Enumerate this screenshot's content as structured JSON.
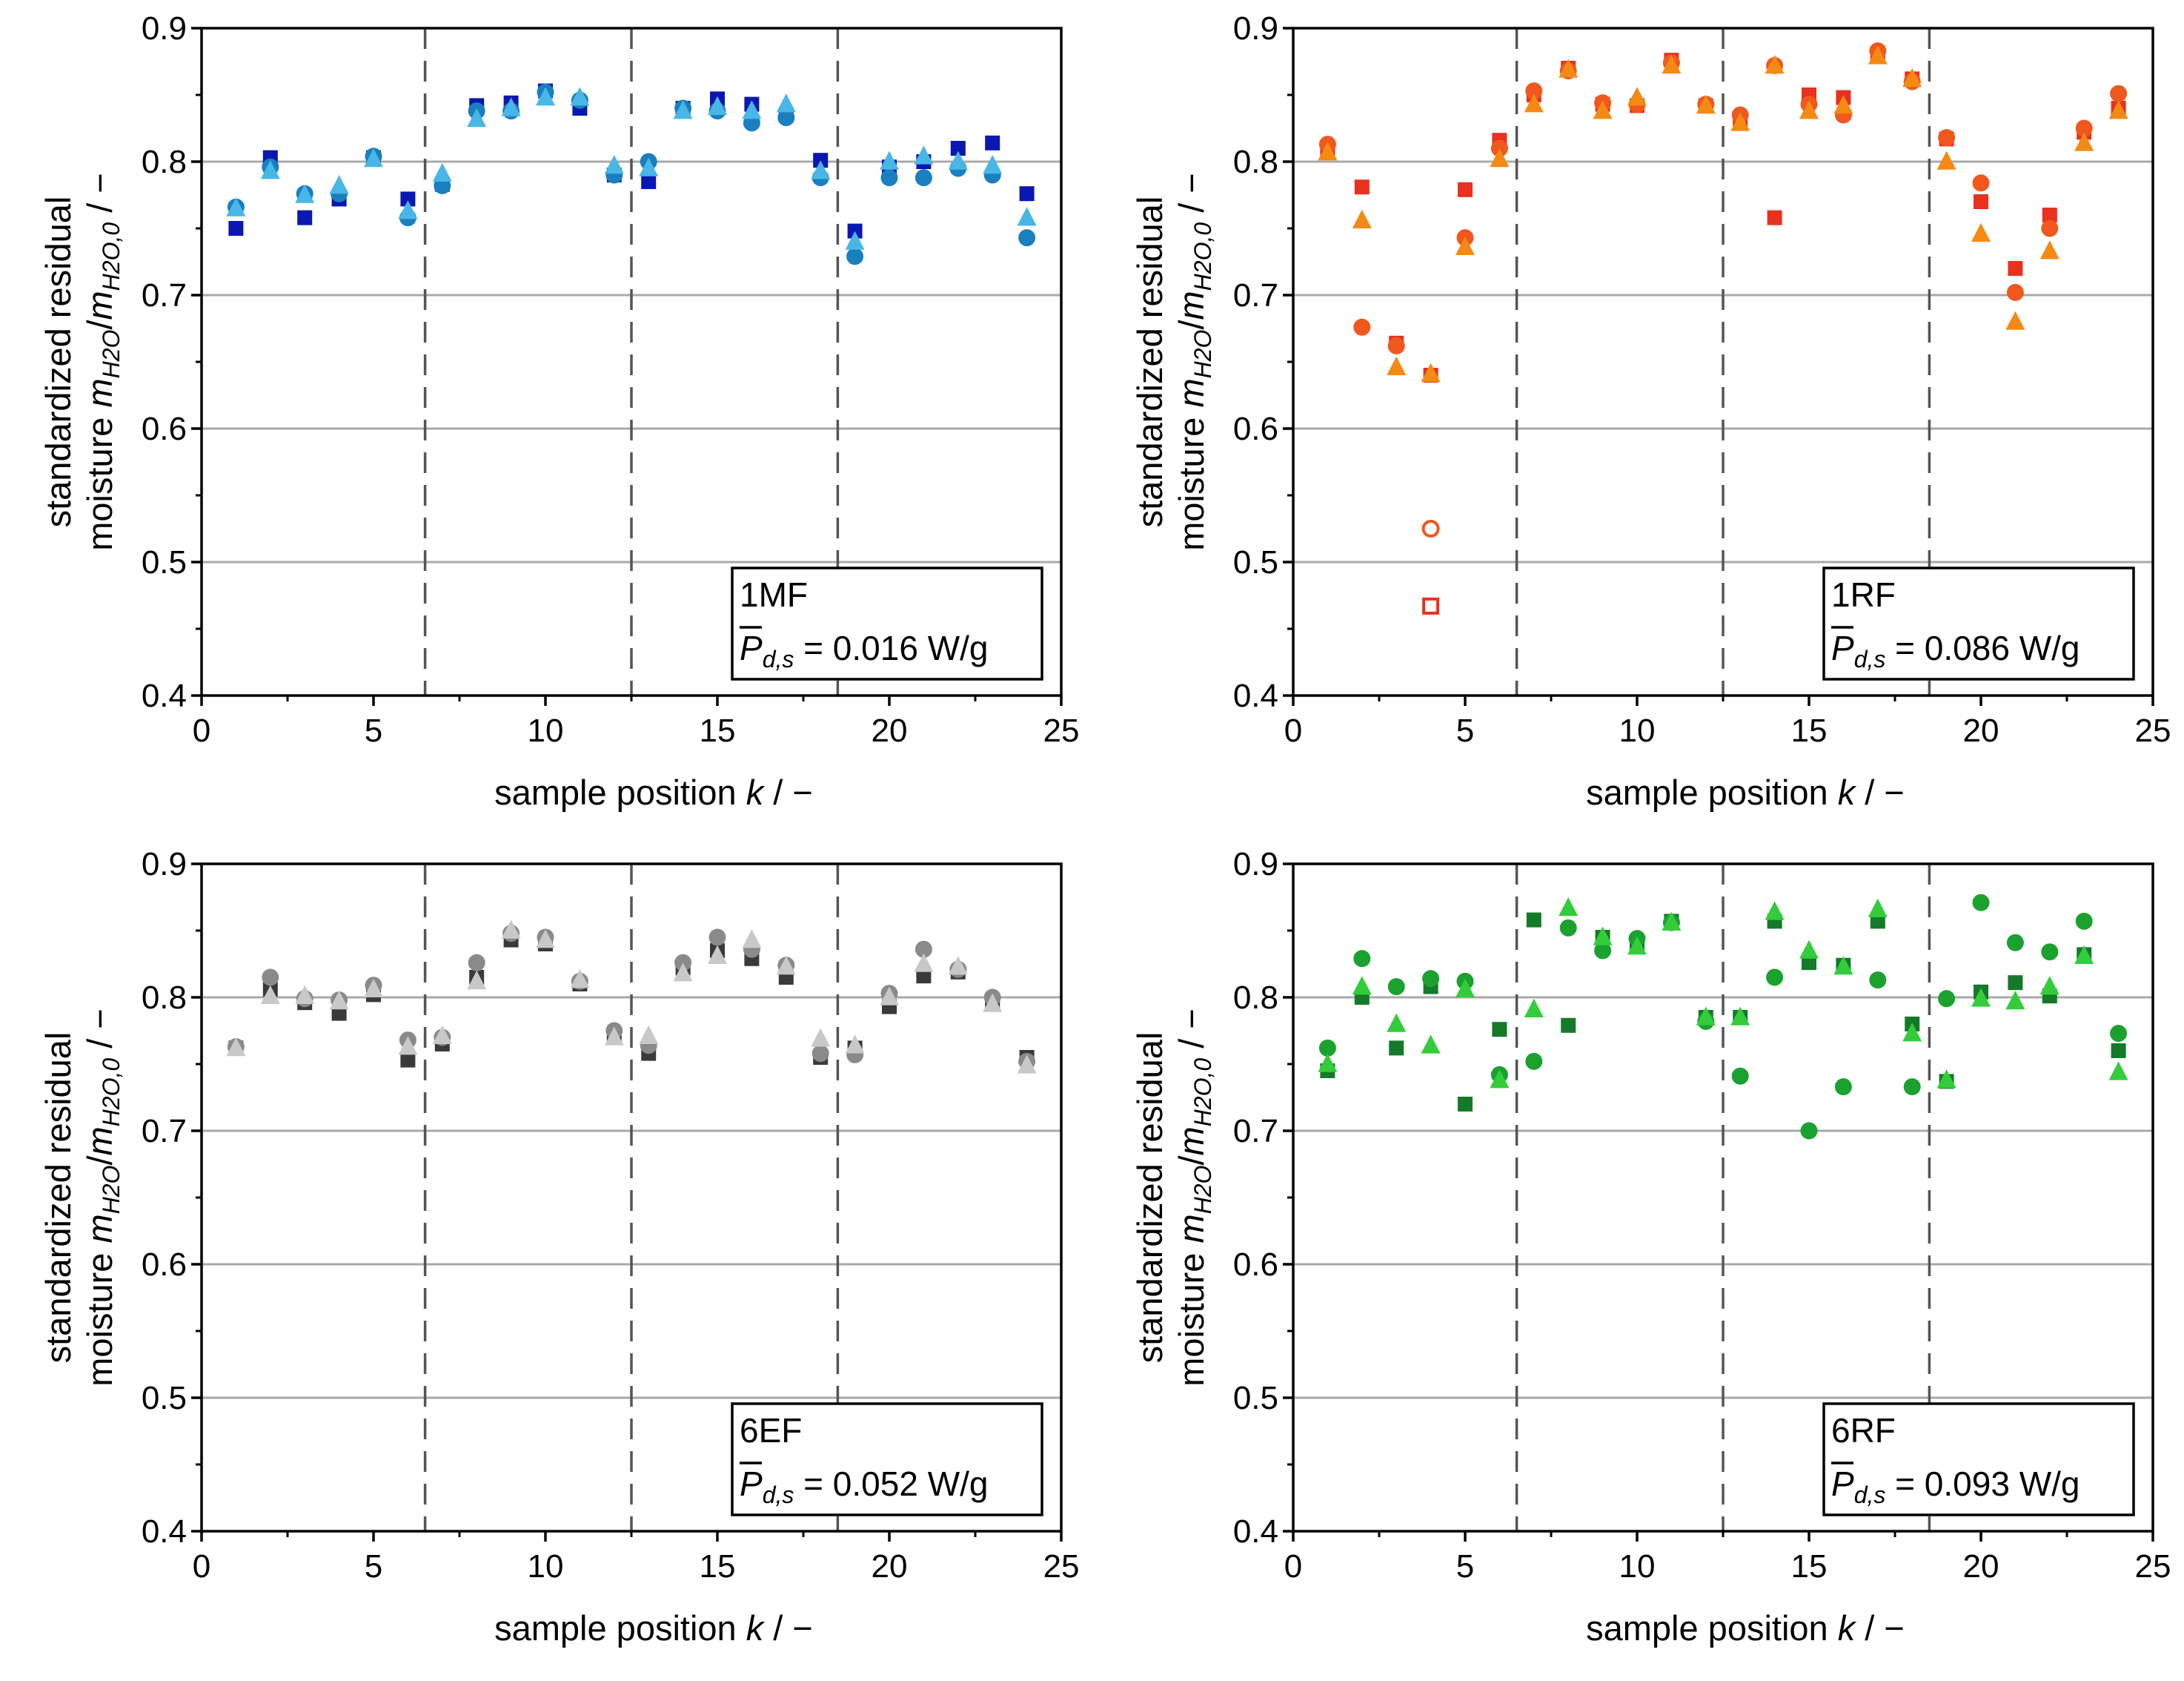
{
  "figure": {
    "xlabel_prefix": "sample position ",
    "xlabel_var": "k",
    "xlabel_suffix": " / −",
    "ylabel_line1": "standardized residual",
    "ylabel_line2_prefix": "moisture ",
    "ylabel_m1": "m",
    "ylabel_sub1": "H2O",
    "ylabel_slash": "/",
    "ylabel_m2": "m",
    "ylabel_sub2": "H2O,0",
    "ylabel_unit": " / −",
    "power_symbol": "P",
    "power_sub": "d,s"
  },
  "chart_data": [
    {
      "type": "scatter",
      "id": "1MF",
      "label": "1MF",
      "power_text": " = 0.016 W/g",
      "xlim": [
        0,
        25
      ],
      "ylim": [
        0.4,
        0.9
      ],
      "xticks": [
        0,
        5,
        10,
        15,
        20,
        25
      ],
      "yticks": [
        0.4,
        0.5,
        0.6,
        0.7,
        0.8,
        0.9
      ],
      "xtick_labels": [
        "0",
        "5",
        "10",
        "15",
        "20",
        "25"
      ],
      "ytick_labels": [
        "0.4",
        "0.5",
        "0.6",
        "0.7",
        "0.8",
        "0.9"
      ],
      "horizontal_grid": true,
      "group_separators": [
        6.5,
        12.5,
        18.5
      ],
      "series": [
        {
          "marker": "square",
          "color": "#0a17b0",
          "x": [
            1,
            2,
            3,
            4,
            5,
            6,
            7,
            8,
            9,
            10,
            11,
            12,
            13,
            14,
            15,
            16,
            17,
            18,
            19,
            20,
            21,
            22,
            23,
            24
          ],
          "y": [
            0.75,
            0.803,
            0.758,
            0.772,
            0.803,
            0.772,
            0.783,
            0.842,
            0.844,
            0.853,
            0.84,
            0.79,
            0.785,
            0.84,
            0.847,
            0.843,
            0.835,
            0.801,
            0.748,
            0.796,
            0.8,
            0.81,
            0.814,
            0.776
          ]
        },
        {
          "marker": "circle",
          "color": "#1a7fbf",
          "x": [
            1,
            2,
            3,
            4,
            5,
            6,
            7,
            8,
            9,
            10,
            11,
            12,
            13,
            14,
            15,
            16,
            17,
            18,
            19,
            20,
            21,
            22,
            23,
            24
          ],
          "y": [
            0.766,
            0.796,
            0.776,
            0.776,
            0.804,
            0.758,
            0.782,
            0.838,
            0.838,
            0.852,
            0.846,
            0.79,
            0.8,
            0.84,
            0.838,
            0.829,
            0.833,
            0.788,
            0.729,
            0.788,
            0.788,
            0.795,
            0.79,
            0.743
          ]
        },
        {
          "marker": "triangle",
          "color": "#48b6e6",
          "x": [
            1,
            2,
            3,
            4,
            5,
            6,
            7,
            8,
            9,
            10,
            11,
            12,
            13,
            14,
            15,
            16,
            17,
            18,
            19,
            20,
            21,
            22,
            23,
            24
          ],
          "y": [
            0.765,
            0.793,
            0.775,
            0.782,
            0.802,
            0.763,
            0.791,
            0.832,
            0.84,
            0.848,
            0.848,
            0.797,
            0.795,
            0.838,
            0.841,
            0.838,
            0.843,
            0.793,
            0.74,
            0.8,
            0.804,
            0.8,
            0.797,
            0.758
          ]
        }
      ],
      "open_markers": []
    },
    {
      "type": "scatter",
      "id": "1RF",
      "label": "1RF",
      "power_text": " = 0.086 W/g",
      "xlim": [
        0,
        25
      ],
      "ylim": [
        0.4,
        0.9
      ],
      "xticks": [
        0,
        5,
        10,
        15,
        20,
        25
      ],
      "yticks": [
        0.4,
        0.5,
        0.6,
        0.7,
        0.8,
        0.9
      ],
      "xtick_labels": [
        "0",
        "5",
        "10",
        "15",
        "20",
        "25"
      ],
      "ytick_labels": [
        "0.4",
        "0.5",
        "0.6",
        "0.7",
        "0.8",
        "0.9"
      ],
      "horizontal_grid": true,
      "group_separators": [
        6.5,
        12.5,
        18.5
      ],
      "series": [
        {
          "marker": "square",
          "color": "#e8311e",
          "x": [
            1,
            2,
            3,
            4,
            5,
            6,
            7,
            8,
            9,
            10,
            11,
            12,
            13,
            14,
            15,
            16,
            17,
            18,
            19,
            20,
            21,
            22,
            23,
            24
          ],
          "y": [
            0.81,
            0.781,
            0.664,
            0.64,
            0.779,
            0.816,
            0.85,
            0.87,
            0.843,
            0.842,
            0.876,
            0.842,
            0.832,
            0.758,
            0.85,
            0.848,
            0.881,
            0.862,
            0.817,
            0.77,
            0.72,
            0.76,
            0.822,
            0.84
          ]
        },
        {
          "marker": "circle",
          "color": "#f0581d",
          "x": [
            1,
            2,
            3,
            5,
            6,
            7,
            8,
            9,
            10,
            11,
            12,
            13,
            14,
            15,
            16,
            17,
            18,
            19,
            20,
            21,
            22,
            23,
            24
          ],
          "y": [
            0.813,
            0.676,
            0.662,
            0.743,
            0.81,
            0.853,
            0.868,
            0.844,
            0.843,
            0.874,
            0.843,
            0.835,
            0.872,
            0.843,
            0.835,
            0.883,
            0.86,
            0.818,
            0.784,
            0.702,
            0.75,
            0.825,
            0.851
          ]
        },
        {
          "marker": "triangle",
          "color": "#f48a14",
          "x": [
            1,
            2,
            3,
            4,
            5,
            6,
            7,
            8,
            9,
            10,
            11,
            12,
            13,
            14,
            15,
            16,
            17,
            18,
            19,
            20,
            21,
            22,
            23,
            24
          ],
          "y": [
            0.807,
            0.756,
            0.646,
            0.641,
            0.736,
            0.802,
            0.843,
            0.869,
            0.838,
            0.848,
            0.872,
            0.842,
            0.829,
            0.872,
            0.838,
            0.842,
            0.879,
            0.862,
            0.8,
            0.746,
            0.68,
            0.733,
            0.814,
            0.838
          ]
        }
      ],
      "open_markers": [
        {
          "marker": "circle",
          "color": "#f0581d",
          "x": 4,
          "y": 0.525
        },
        {
          "marker": "square",
          "color": "#e8311e",
          "x": 4,
          "y": 0.467
        }
      ]
    },
    {
      "type": "scatter",
      "id": "6EF",
      "label": "6EF",
      "power_text": " = 0.052 W/g",
      "xlim": [
        0,
        25
      ],
      "ylim": [
        0.4,
        0.9
      ],
      "xticks": [
        0,
        5,
        10,
        15,
        20,
        25
      ],
      "yticks": [
        0.4,
        0.5,
        0.6,
        0.7,
        0.8,
        0.9
      ],
      "xtick_labels": [
        "0",
        "5",
        "10",
        "15",
        "20",
        "25"
      ],
      "ytick_labels": [
        "0.4",
        "0.5",
        "0.6",
        "0.7",
        "0.8",
        "0.9"
      ],
      "horizontal_grid": true,
      "group_separators": [
        6.5,
        12.5,
        18.5
      ],
      "series": [
        {
          "marker": "square",
          "color": "#3a3a3a",
          "x": [
            1,
            2,
            3,
            4,
            5,
            6,
            7,
            8,
            9,
            10,
            11,
            12,
            13,
            14,
            15,
            16,
            17,
            18,
            19,
            20,
            21,
            22,
            23,
            24
          ],
          "y": [
            0.762,
            0.806,
            0.796,
            0.788,
            0.802,
            0.753,
            0.765,
            0.815,
            0.843,
            0.84,
            0.81,
            0.772,
            0.758,
            0.822,
            0.835,
            0.829,
            0.815,
            0.755,
            0.762,
            0.793,
            0.816,
            0.819,
            0.797,
            0.755
          ]
        },
        {
          "marker": "circle",
          "color": "#8a8a8a",
          "x": [
            1,
            2,
            3,
            4,
            5,
            6,
            7,
            8,
            9,
            10,
            11,
            12,
            13,
            14,
            15,
            16,
            17,
            18,
            19,
            20,
            21,
            22,
            23,
            24
          ],
          "y": [
            0.763,
            0.815,
            0.799,
            0.798,
            0.809,
            0.768,
            0.77,
            0.826,
            0.848,
            0.845,
            0.812,
            0.775,
            0.764,
            0.826,
            0.845,
            0.836,
            0.824,
            0.758,
            0.757,
            0.803,
            0.836,
            0.821,
            0.8,
            0.752
          ]
        },
        {
          "marker": "triangle",
          "color": "#c8c8c8",
          "x": [
            1,
            2,
            3,
            4,
            5,
            6,
            7,
            8,
            9,
            10,
            11,
            12,
            13,
            14,
            15,
            16,
            17,
            18,
            19,
            20,
            21,
            22,
            23,
            24
          ],
          "y": [
            0.762,
            0.801,
            0.801,
            0.797,
            0.806,
            0.763,
            0.771,
            0.812,
            0.85,
            0.843,
            0.813,
            0.77,
            0.771,
            0.818,
            0.831,
            0.843,
            0.823,
            0.769,
            0.764,
            0.8,
            0.825,
            0.823,
            0.795,
            0.749
          ]
        }
      ],
      "open_markers": []
    },
    {
      "type": "scatter",
      "id": "6RF",
      "label": "6RF",
      "power_text": " = 0.093 W/g",
      "xlim": [
        0,
        25
      ],
      "ylim": [
        0.4,
        0.9
      ],
      "xticks": [
        0,
        5,
        10,
        15,
        20,
        25
      ],
      "yticks": [
        0.4,
        0.5,
        0.6,
        0.7,
        0.8,
        0.9
      ],
      "xtick_labels": [
        "0",
        "5",
        "10",
        "15",
        "20",
        "25"
      ],
      "ytick_labels": [
        "0.4",
        "0.5",
        "0.6",
        "0.7",
        "0.8",
        "0.9"
      ],
      "horizontal_grid": true,
      "group_separators": [
        6.5,
        12.5,
        18.5
      ],
      "series": [
        {
          "marker": "square",
          "color": "#147a29",
          "x": [
            1,
            2,
            3,
            4,
            5,
            6,
            7,
            8,
            9,
            10,
            11,
            12,
            13,
            14,
            15,
            16,
            17,
            18,
            19,
            20,
            21,
            22,
            23,
            24
          ],
          "y": [
            0.745,
            0.8,
            0.762,
            0.808,
            0.72,
            0.776,
            0.858,
            0.779,
            0.845,
            0.84,
            0.857,
            0.785,
            0.785,
            0.857,
            0.826,
            0.824,
            0.857,
            0.78,
            0.737,
            0.804,
            0.811,
            0.801,
            0.832,
            0.76
          ]
        },
        {
          "marker": "circle",
          "color": "#1aa12e",
          "x": [
            1,
            2,
            3,
            4,
            5,
            6,
            7,
            8,
            9,
            10,
            11,
            12,
            13,
            14,
            15,
            16,
            17,
            18,
            19,
            20,
            21,
            22,
            23,
            24
          ],
          "y": [
            0.762,
            0.829,
            0.808,
            0.814,
            0.812,
            0.742,
            0.752,
            0.852,
            0.835,
            0.844,
            0.856,
            0.782,
            0.741,
            0.815,
            0.7,
            0.733,
            0.813,
            0.733,
            0.799,
            0.871,
            0.841,
            0.834,
            0.857,
            0.773
          ]
        },
        {
          "marker": "triangle",
          "color": "#33cc3a",
          "x": [
            1,
            2,
            3,
            4,
            5,
            6,
            7,
            8,
            9,
            10,
            11,
            12,
            13,
            14,
            15,
            16,
            17,
            18,
            19,
            20,
            21,
            22,
            23,
            24
          ],
          "y": [
            0.75,
            0.808,
            0.78,
            0.764,
            0.806,
            0.738,
            0.791,
            0.867,
            0.845,
            0.838,
            0.856,
            0.785,
            0.785,
            0.864,
            0.835,
            0.823,
            0.866,
            0.773,
            0.738,
            0.799,
            0.797,
            0.808,
            0.831,
            0.744
          ]
        }
      ],
      "open_markers": []
    }
  ]
}
